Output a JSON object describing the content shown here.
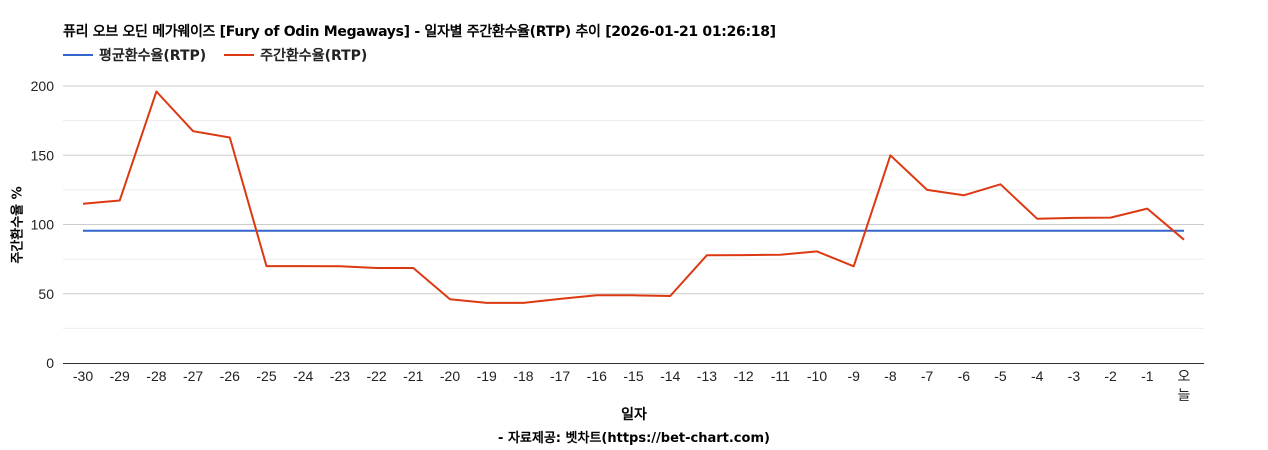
{
  "chart_data": {
    "type": "line",
    "title": "퓨리 오브 오딘 메가웨이즈 [Fury of Odin Megaways] - 일자별 주간환수율(RTP) 추이 [2026-01-21 01:26:18]",
    "xlabel": "일자",
    "ylabel": "주간환수율 %",
    "credit": "- 자료제공: 벳차트(https://bet-chart.com)",
    "ylim": [
      0,
      200
    ],
    "yticks": [
      0,
      50,
      100,
      150,
      200
    ],
    "minor_gridlines": [
      25,
      75,
      125,
      175
    ],
    "grid": true,
    "legend_position": "top",
    "categories": [
      "-30",
      "-29",
      "-28",
      "-27",
      "-26",
      "-25",
      "-24",
      "-23",
      "-22",
      "-21",
      "-20",
      "-19",
      "-18",
      "-17",
      "-16",
      "-15",
      "-14",
      "-13",
      "-12",
      "-11",
      "-10",
      "-9",
      "-8",
      "-7",
      "-6",
      "-5",
      "-4",
      "-3",
      "-2",
      "-1",
      "오늘"
    ],
    "series": [
      {
        "name": "평균환수율(RTP)",
        "color": "#3366cc",
        "values": [
          95.5,
          95.5,
          95.5,
          95.5,
          95.5,
          95.5,
          95.5,
          95.5,
          95.5,
          95.5,
          95.5,
          95.5,
          95.5,
          95.5,
          95.5,
          95.5,
          95.5,
          95.5,
          95.5,
          95.5,
          95.5,
          95.5,
          95.5,
          95.5,
          95.5,
          95.5,
          95.5,
          95.5,
          95.5,
          95.5,
          95.5
        ]
      },
      {
        "name": "주간환수율(RTP)",
        "color": "#dc3912",
        "values": [
          115,
          117.3,
          196,
          167.4,
          162.8,
          70,
          70,
          69.8,
          68.6,
          68.6,
          46,
          43.4,
          43.4,
          46.3,
          48.9,
          48.9,
          48.4,
          77.8,
          77.9,
          78.2,
          80.6,
          69.8,
          150,
          125,
          121.1,
          129,
          104.1,
          104.8,
          105,
          111.5,
          89
        ]
      }
    ]
  }
}
